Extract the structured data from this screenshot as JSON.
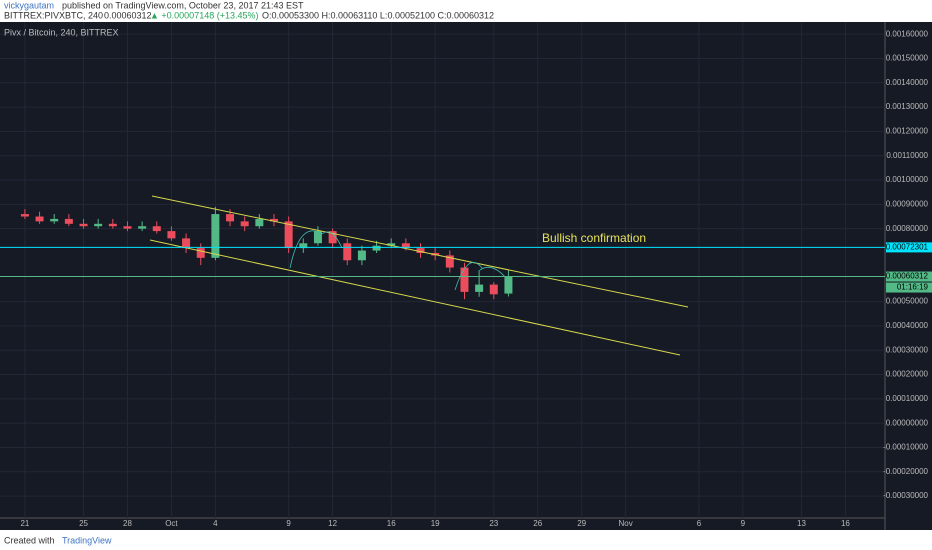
{
  "header": {
    "author": "vickygautam",
    "published": "published on TradingView.com, October 23, 2017 21:43 EST",
    "symbol": "BITTREX:PIVXBTC, 240",
    "last": "0.00060312",
    "change": "▲ +0.00007148 (+13.45%)",
    "ohlc": "O:0.00053300 H:0.00063110 L:0.00052100 C:0.00060312"
  },
  "chart_data": {
    "type": "candlestick",
    "title": "Pivx / Bitcoin, 240, BITTREX",
    "x": [
      0,
      1,
      2,
      3,
      4,
      5,
      6,
      7,
      8,
      9,
      10,
      11,
      12,
      13,
      14,
      15,
      16,
      17,
      18,
      19,
      20,
      21,
      22,
      23,
      24,
      25,
      26,
      27,
      28,
      29,
      30,
      31,
      32,
      33
    ],
    "open": [
      0.00086,
      0.00085,
      0.00083,
      0.00084,
      0.00082,
      0.00081,
      0.00082,
      0.00081,
      0.0008,
      0.00081,
      0.00079,
      0.00076,
      0.00072,
      0.00068,
      0.00086,
      0.00083,
      0.00081,
      0.00084,
      0.00083,
      0.00072,
      0.00074,
      0.00079,
      0.00074,
      0.00067,
      0.00071,
      0.00073,
      0.00074,
      0.00072,
      0.0007,
      0.00069,
      0.00064,
      0.00054,
      0.00057,
      0.000533
    ],
    "high": [
      0.00088,
      0.00087,
      0.00086,
      0.00086,
      0.00084,
      0.00084,
      0.00084,
      0.00083,
      0.00083,
      0.00083,
      0.00081,
      0.00078,
      0.00074,
      0.00089,
      0.00088,
      0.00085,
      0.00086,
      0.00086,
      0.00085,
      0.00076,
      0.00081,
      0.0008,
      0.00076,
      0.00073,
      0.00075,
      0.00076,
      0.00076,
      0.00074,
      0.00072,
      0.00071,
      0.00066,
      0.00063,
      0.00058,
      0.0006311
    ],
    "low": [
      0.00084,
      0.00082,
      0.00082,
      0.00081,
      0.0008,
      0.0008,
      0.0008,
      0.00079,
      0.00079,
      0.00078,
      0.00075,
      0.0007,
      0.00065,
      0.00067,
      0.00081,
      0.00079,
      0.0008,
      0.00081,
      0.0007,
      0.0007,
      0.00073,
      0.00072,
      0.00065,
      0.00065,
      0.0007,
      0.00072,
      0.00071,
      0.00068,
      0.00067,
      0.00062,
      0.00051,
      0.00052,
      0.00051,
      0.000521
    ],
    "close": [
      0.00085,
      0.00083,
      0.00084,
      0.00082,
      0.00081,
      0.00082,
      0.00081,
      0.0008,
      0.00081,
      0.00079,
      0.00076,
      0.00072,
      0.00068,
      0.00086,
      0.00083,
      0.00081,
      0.00084,
      0.00083,
      0.00072,
      0.00074,
      0.00079,
      0.00074,
      0.00067,
      0.00071,
      0.00073,
      0.00074,
      0.00072,
      0.0007,
      0.00069,
      0.00064,
      0.00054,
      0.00057,
      0.00053,
      0.00060312
    ],
    "up_color": "#53b987",
    "down_color": "#eb4d5c",
    "xlim": [
      -1.7,
      58.7
    ],
    "xticks": [
      {
        "value": 0,
        "label": "21"
      },
      {
        "value": 4,
        "label": "25"
      },
      {
        "value": 7,
        "label": "28"
      },
      {
        "value": 10,
        "label": "Oct"
      },
      {
        "value": 13,
        "label": "4"
      },
      {
        "value": 18,
        "label": "9"
      },
      {
        "value": 21,
        "label": "12"
      },
      {
        "value": 25,
        "label": "16"
      },
      {
        "value": 28,
        "label": "19"
      },
      {
        "value": 32,
        "label": "23"
      },
      {
        "value": 35,
        "label": "26"
      },
      {
        "value": 38,
        "label": "29"
      },
      {
        "value": 41,
        "label": "Nov"
      },
      {
        "value": 46,
        "label": "6"
      },
      {
        "value": 49,
        "label": "9"
      },
      {
        "value": 53,
        "label": "13"
      },
      {
        "value": 56,
        "label": "16"
      }
    ],
    "ylim": [
      -0.00039,
      0.00165
    ],
    "yticks": [
      {
        "value": 0.0016,
        "label": "0.00160000"
      },
      {
        "value": 0.0015,
        "label": "0.00150000"
      },
      {
        "value": 0.0014,
        "label": "0.00140000"
      },
      {
        "value": 0.0013,
        "label": "0.00130000"
      },
      {
        "value": 0.0012,
        "label": "0.00120000"
      },
      {
        "value": 0.0011,
        "label": "0.00110000"
      },
      {
        "value": 0.001,
        "label": "0.00100000"
      },
      {
        "value": 0.0009,
        "label": "0.00090000"
      },
      {
        "value": 0.0008,
        "label": "0.00080000"
      },
      {
        "value": 0.0005,
        "label": "0.00050000"
      },
      {
        "value": 0.0004,
        "label": "0.00040000"
      },
      {
        "value": 0.0003,
        "label": "0.00030000"
      },
      {
        "value": 0.0002,
        "label": "0.00020000"
      },
      {
        "value": 0.0001,
        "label": "0.00010000"
      },
      {
        "value": 0,
        "label": "0.00000000"
      },
      {
        "value": -0.0001,
        "label": "-0.00010000"
      },
      {
        "value": -0.0002,
        "label": "-0.00020000"
      },
      {
        "value": -0.0003,
        "label": "-0.00030000"
      }
    ],
    "grid": true,
    "level": {
      "value": 0.00072301,
      "label": "0.00072301",
      "color": "#00e5ff"
    },
    "price_line": {
      "value": 0.00060312,
      "label": "0.00060312",
      "color": "#53b987"
    },
    "countdown": "01:16:19",
    "annotation": "Bullish confirmation"
  },
  "footer": {
    "created": "Created with",
    "brand": "TradingView"
  }
}
